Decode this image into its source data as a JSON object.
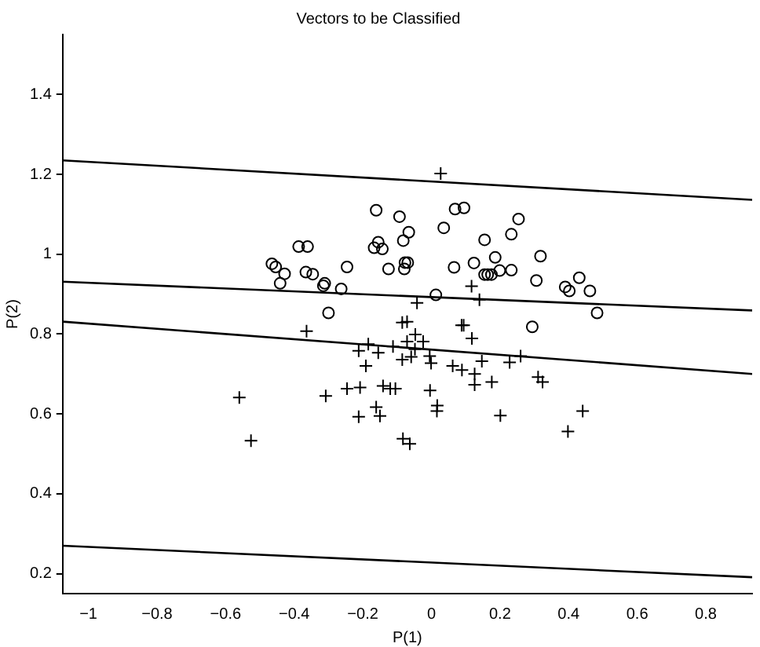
{
  "chart_data": {
    "type": "scatter",
    "title": "Vectors to be Classified",
    "xlabel": "P(1)",
    "ylabel": "P(2)",
    "xlim": [
      -1.075,
      0.935
    ],
    "ylim": [
      0.15,
      1.55
    ],
    "xticks": [
      -1,
      -0.8,
      -0.6,
      -0.4,
      -0.2,
      0,
      0.2,
      0.4,
      0.6,
      0.8
    ],
    "yticks": [
      0.2,
      0.4,
      0.6,
      0.8,
      1,
      1.2,
      1.4
    ],
    "grid": false,
    "legend": false,
    "series": [
      {
        "type": "scatter",
        "marker": "circle",
        "color": "#000000",
        "x": [
          -0.161,
          -0.093,
          -0.066,
          -0.082,
          -0.155,
          -0.167,
          -0.143,
          -0.387,
          -0.361,
          -0.465,
          -0.454,
          -0.428,
          -0.441,
          -0.366,
          -0.346,
          -0.311,
          -0.315,
          -0.263,
          -0.246,
          -0.3,
          -0.125,
          -0.077,
          -0.069,
          -0.079,
          0.036,
          0.069,
          0.095,
          0.254,
          0.233,
          0.155,
          0.186,
          0.318,
          0.066,
          0.124,
          0.155,
          0.164,
          0.175,
          0.199,
          0.233,
          0.306,
          0.39,
          0.402,
          0.431,
          0.462,
          0.483,
          0.013,
          0.294
        ],
        "values": [
          1.11,
          1.094,
          1.055,
          1.034,
          1.03,
          1.016,
          1.013,
          1.019,
          1.019,
          0.976,
          0.968,
          0.951,
          0.927,
          0.955,
          0.95,
          0.927,
          0.921,
          0.913,
          0.968,
          0.853,
          0.963,
          0.979,
          0.979,
          0.963,
          1.066,
          1.113,
          1.116,
          1.088,
          1.05,
          1.036,
          0.992,
          0.995,
          0.967,
          0.978,
          0.949,
          0.949,
          0.949,
          0.959,
          0.96,
          0.934,
          0.918,
          0.908,
          0.941,
          0.908,
          0.853,
          0.898,
          0.818
        ]
      },
      {
        "type": "scatter",
        "marker": "cross",
        "color": "#000000",
        "x": [
          -0.364,
          -0.085,
          -0.071,
          -0.184,
          -0.212,
          -0.155,
          -0.112,
          -0.071,
          -0.085,
          -0.059,
          -0.191,
          -0.56,
          -0.526,
          -0.308,
          -0.246,
          -0.208,
          -0.141,
          -0.12,
          -0.105,
          -0.212,
          -0.161,
          -0.15,
          -0.083,
          -0.063,
          -0.047,
          -0.048,
          -0.024,
          -0.005,
          -0.001,
          0.118,
          0.062,
          0.089,
          0.126,
          0.126,
          0.147,
          0.176,
          0.228,
          0.26,
          0.311,
          0.324,
          -0.004,
          0.017,
          0.016,
          0.201,
          0.441,
          0.398,
          0.027,
          0.117,
          0.14,
          -0.042,
          0.088,
          0.094
        ],
        "values": [
          0.807,
          0.829,
          0.831,
          0.775,
          0.758,
          0.753,
          0.769,
          0.781,
          0.736,
          0.743,
          0.72,
          0.641,
          0.533,
          0.645,
          0.663,
          0.666,
          0.67,
          0.663,
          0.663,
          0.593,
          0.617,
          0.595,
          0.538,
          0.525,
          0.799,
          0.762,
          0.781,
          0.745,
          0.727,
          0.789,
          0.72,
          0.71,
          0.7,
          0.673,
          0.732,
          0.68,
          0.729,
          0.745,
          0.692,
          0.68,
          0.659,
          0.621,
          0.607,
          0.596,
          0.607,
          0.556,
          1.202,
          0.92,
          0.886,
          0.878,
          0.822,
          0.822
        ]
      },
      {
        "type": "line",
        "marker": "none",
        "color": "#000000",
        "x": [
          -1.075,
          0.935
        ],
        "values": [
          1.235,
          1.136
        ]
      },
      {
        "type": "line",
        "marker": "none",
        "color": "#000000",
        "x": [
          -1.075,
          0.935
        ],
        "values": [
          0.931,
          0.859
        ]
      },
      {
        "type": "line",
        "marker": "none",
        "color": "#000000",
        "x": [
          -1.075,
          0.935
        ],
        "values": [
          0.831,
          0.7
        ]
      },
      {
        "type": "line",
        "marker": "none",
        "color": "#000000",
        "x": [
          -1.075,
          0.935
        ],
        "values": [
          0.27,
          0.191
        ]
      }
    ]
  }
}
